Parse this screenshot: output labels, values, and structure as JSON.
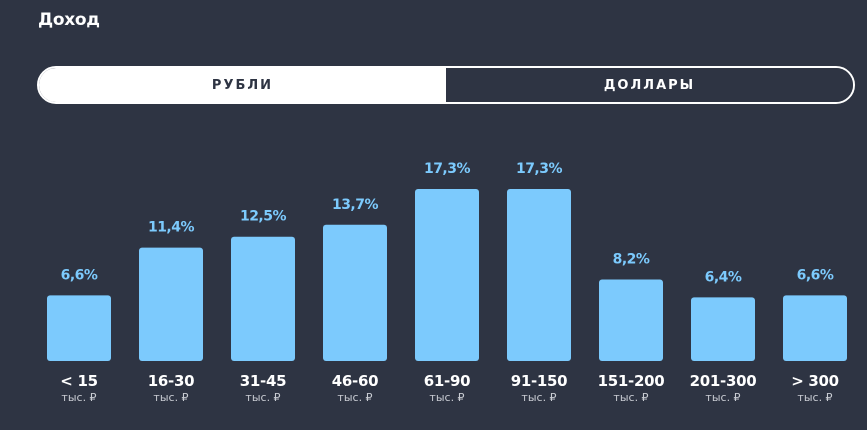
{
  "header": {
    "title": "Доход"
  },
  "currency_toggle": {
    "options": [
      {
        "label": "РУБЛИ",
        "active": true
      },
      {
        "label": "ДОЛЛАРЫ",
        "active": false
      }
    ]
  },
  "colors": {
    "background": "#2e3443",
    "bar": "#7ccafd",
    "value_label": "#7ccafd",
    "category_label": "#ffffff",
    "unit_label": "#c9ccd3"
  },
  "chart_data": {
    "type": "bar",
    "title": "",
    "xlabel": "",
    "ylabel": "",
    "ylim": [
      0,
      17.3
    ],
    "categories": [
      "< 15",
      "16-30",
      "31-45",
      "46-60",
      "61-90",
      "91-150",
      "151-200",
      "201-300",
      "> 300"
    ],
    "unit_label": "тыс. ₽",
    "values": [
      6.6,
      11.4,
      12.5,
      13.7,
      17.3,
      17.3,
      8.2,
      6.4,
      6.6
    ],
    "value_labels": [
      "6,6%",
      "11,4%",
      "12,5%",
      "13,7%",
      "17,3%",
      "17,3%",
      "8,2%",
      "6,4%",
      "6,6%"
    ],
    "grid": false,
    "legend": "none"
  }
}
